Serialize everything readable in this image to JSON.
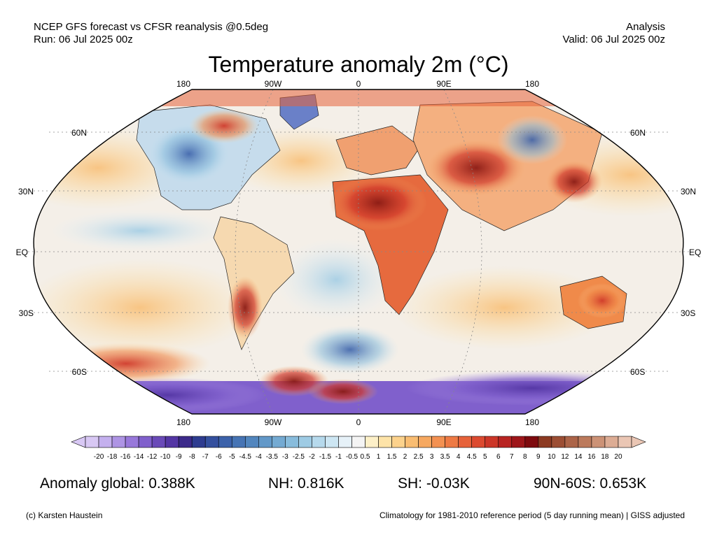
{
  "header": {
    "line1": "NCEP GFS forecast vs CFSR reanalysis @0.5deg",
    "line2": "Run: 06 Jul 2025 00z",
    "right1": "Analysis",
    "right2": "Valid: 06 Jul 2025 00z"
  },
  "title": "Temperature anomaly 2m (°C)",
  "lon_labels": [
    "180",
    "90W",
    "0",
    "90E",
    "180"
  ],
  "lat_labels_left": [
    "60N",
    "30N",
    "EQ",
    "30S",
    "60S"
  ],
  "lat_labels_right": [
    "60N",
    "30N",
    "EQ",
    "30S",
    "60S"
  ],
  "colorbar": {
    "ticks": [
      "-20",
      "-18",
      "-16",
      "-14",
      "-12",
      "-10",
      "-9",
      "-8",
      "-7",
      "-6",
      "-5",
      "-4.5",
      "-4",
      "-3.5",
      "-3",
      "-2.5",
      "-2",
      "-1.5",
      "-1",
      "-0.5",
      "0.5",
      "1",
      "1.5",
      "2",
      "2.5",
      "3",
      "3.5",
      "4",
      "4.5",
      "5",
      "6",
      "7",
      "8",
      "9",
      "10",
      "12",
      "14",
      "16",
      "18",
      "20"
    ],
    "colors": [
      "#d8c8f4",
      "#c4b0ee",
      "#ae94e4",
      "#9878da",
      "#8060cc",
      "#6a4ab8",
      "#5436a4",
      "#3c2a8a",
      "#2e3c90",
      "#34509e",
      "#3c62aa",
      "#4674b4",
      "#5286be",
      "#6298c8",
      "#74aad2",
      "#88bcdc",
      "#9ecbe4",
      "#b6d9ec",
      "#cde6f3",
      "#e6f1f8",
      "#f4f4f4",
      "#fdf0c8",
      "#fde3a8",
      "#fcd28c",
      "#f9bd72",
      "#f6a860",
      "#f39152",
      "#ee7a44",
      "#e6623a",
      "#dc4a30",
      "#cc3628",
      "#b82422",
      "#9e161a",
      "#7e0a0e",
      "#8c3a22",
      "#9c4e34",
      "#ac6448",
      "#bc7a5c",
      "#cc9276",
      "#dcac94",
      "#eac6b4"
    ]
  },
  "stats": {
    "global": "Anomaly global: 0.388K",
    "nh": "NH: 0.816K",
    "sh": "SH: -0.03K",
    "arctic": "90N-60S: 0.653K"
  },
  "footer": {
    "left": "(c) Karsten Haustein",
    "right": "Climatology for 1981-2010 reference period (5 day running mean) | GISS adjusted"
  }
}
